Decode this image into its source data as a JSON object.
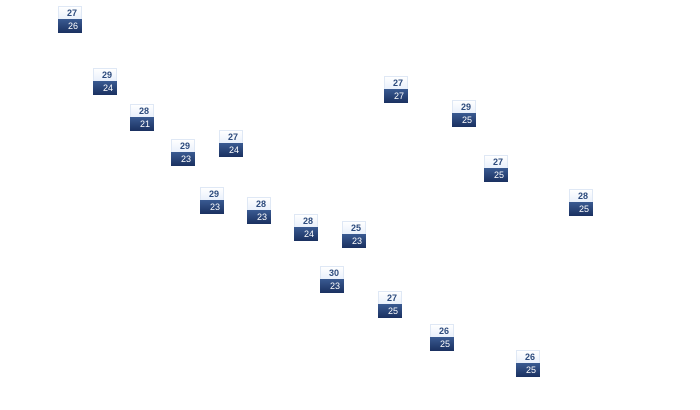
{
  "markers": [
    {
      "high": "27",
      "low": "26"
    },
    {
      "high": "29",
      "low": "24"
    },
    {
      "high": "28",
      "low": "21"
    },
    {
      "high": "29",
      "low": "23"
    },
    {
      "high": "27",
      "low": "24"
    },
    {
      "high": "29",
      "low": "23"
    },
    {
      "high": "28",
      "low": "23"
    },
    {
      "high": "28",
      "low": "24"
    },
    {
      "high": "25",
      "low": "23"
    },
    {
      "high": "30",
      "low": "23"
    },
    {
      "high": "27",
      "low": "25"
    },
    {
      "high": "26",
      "low": "25"
    },
    {
      "high": "26",
      "low": "25"
    },
    {
      "high": "27",
      "low": "27"
    },
    {
      "high": "29",
      "low": "25"
    },
    {
      "high": "27",
      "low": "25"
    },
    {
      "high": "28",
      "low": "25"
    }
  ]
}
